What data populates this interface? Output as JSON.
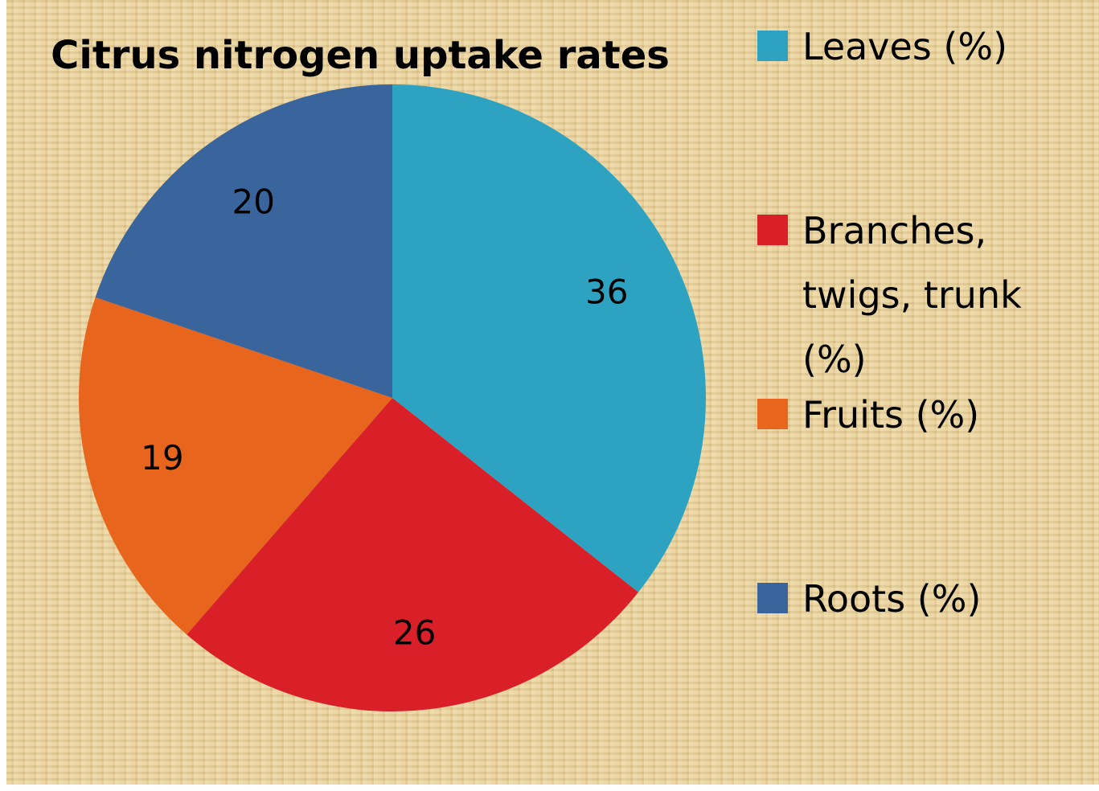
{
  "chart_data": {
    "type": "pie",
    "title": "Citrus nitrogen uptake rates",
    "categories": [
      "Leaves (%)",
      "Branches, twigs, trunk (%)",
      "Fruits (%)",
      "Roots (%)"
    ],
    "values": [
      36,
      26,
      19,
      20
    ],
    "colors": [
      "#2ea3c1",
      "#d92029",
      "#e8651e",
      "#3a649c"
    ],
    "legend": "right"
  }
}
